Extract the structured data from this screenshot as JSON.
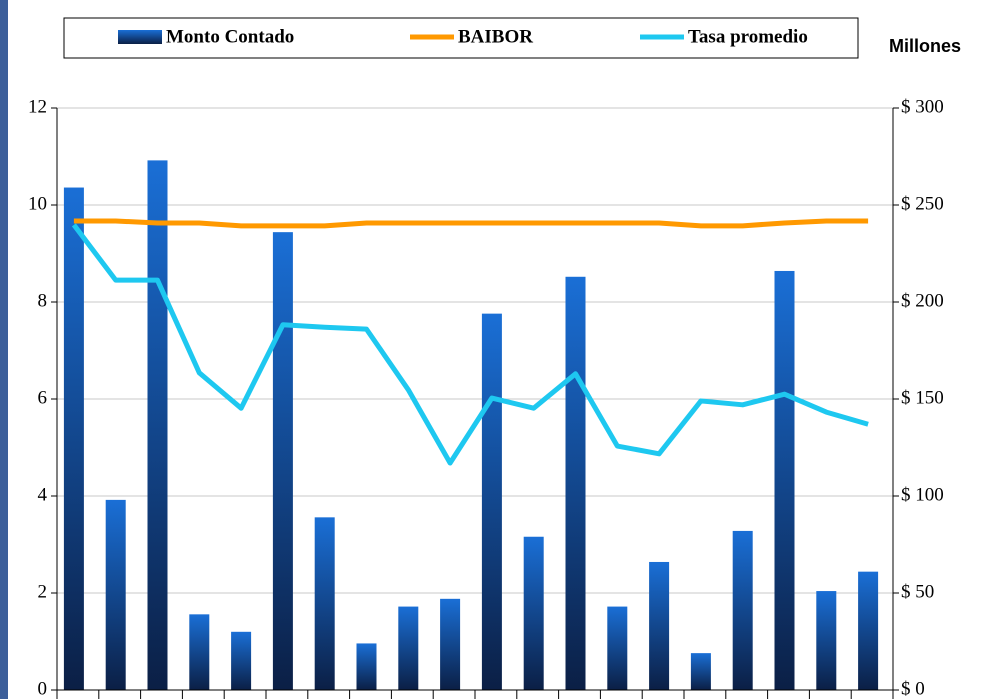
{
  "chart_data": {
    "type": "bar_line",
    "y2_label": "Millones",
    "x": [
      null,
      null,
      null,
      null,
      null,
      null,
      null,
      null,
      null,
      null,
      null,
      null,
      null,
      null,
      null,
      null,
      null,
      null,
      null,
      null
    ],
    "ylim": [
      0,
      12
    ],
    "yticks": [
      0,
      2,
      4,
      6,
      8,
      10,
      12
    ],
    "y2lim": [
      0,
      300
    ],
    "y2ticks": [
      {
        "value": 0,
        "label": "$ 0"
      },
      {
        "value": 50,
        "label": "$ 50"
      },
      {
        "value": 100,
        "label": "$ 100"
      },
      {
        "value": 150,
        "label": "$ 150"
      },
      {
        "value": 200,
        "label": "$ 200"
      },
      {
        "value": 250,
        "label": "$ 250"
      },
      {
        "value": 300,
        "label": "$ 300"
      }
    ],
    "grid": true,
    "legend": "top",
    "series": [
      {
        "name": "Monto Contado",
        "type": "bar",
        "axis": "y2",
        "color": "#1a6fd6",
        "values": [
          259,
          98,
          273,
          39,
          30,
          236,
          89,
          24,
          43,
          47,
          194,
          79,
          213,
          43,
          66,
          19,
          82,
          216,
          51,
          61
        ]
      },
      {
        "name": "BAIBOR",
        "type": "line",
        "color": "#ff9900",
        "values": [
          9.67,
          9.67,
          9.63,
          9.63,
          9.57,
          9.57,
          9.57,
          9.63,
          9.63,
          9.63,
          9.63,
          9.63,
          9.63,
          9.63,
          9.63,
          9.57,
          9.57,
          9.63,
          9.67,
          9.67
        ]
      },
      {
        "name": "Tasa promedio",
        "type": "line",
        "color": "#1ec8f0",
        "values": [
          9.59,
          8.45,
          8.45,
          6.54,
          5.81,
          7.53,
          7.48,
          7.44,
          6.19,
          4.68,
          6.02,
          5.81,
          6.52,
          5.03,
          4.87,
          5.96,
          5.88,
          6.1,
          5.73,
          5.48
        ]
      }
    ]
  }
}
